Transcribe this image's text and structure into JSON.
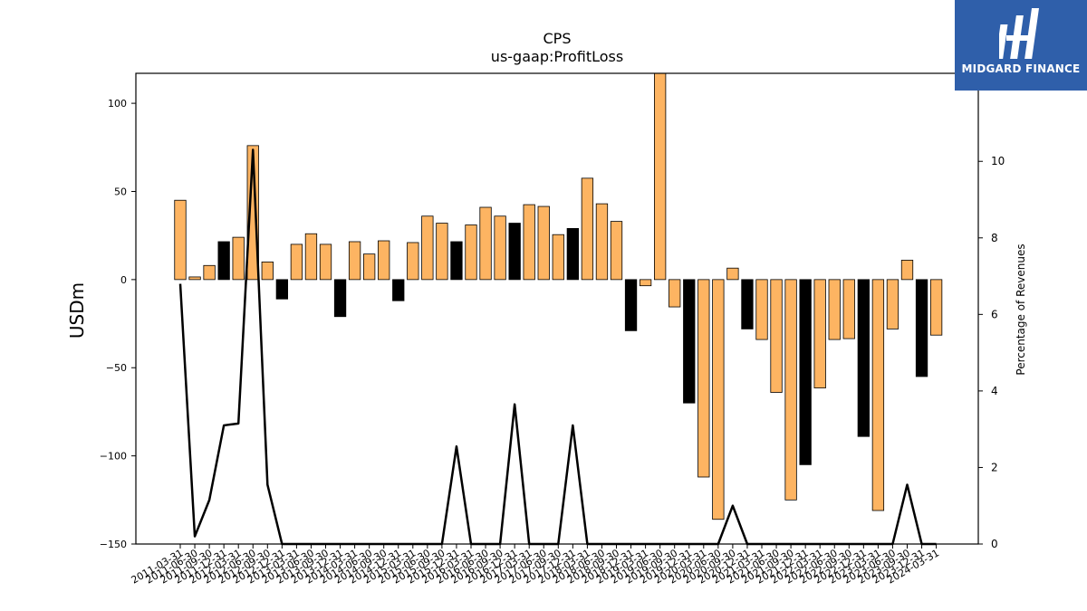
{
  "brand": {
    "name": "MIDGARD FINANCE",
    "logo_icon": "midgard-m-logo-icon",
    "color": "#2f5faa"
  },
  "chart_data": {
    "type": "bar",
    "title": "CPS",
    "subtitle": "us-gaap:ProfitLoss",
    "ylabel": "USDm",
    "y2label": "Percentage of Revenues",
    "ylim": [
      -150,
      117
    ],
    "y2lim": [
      0,
      12.3
    ],
    "yticks": [
      -150,
      -100,
      -50,
      0,
      50,
      100
    ],
    "y2ticks": [
      0,
      2,
      4,
      6,
      8,
      10
    ],
    "grid": false,
    "colors": {
      "quarter": "#fdb462",
      "annual": "#000000",
      "line": "#000000"
    },
    "categories": [
      "2011-03-31",
      "2011-06-30",
      "2011-09-30",
      "2011-12-31",
      "2012-03-31",
      "2012-06-30",
      "2012-09-30",
      "2012-12-31",
      "2013-03-31",
      "2013-06-30",
      "2013-09-30",
      "2013-12-31",
      "2014-03-31",
      "2014-06-30",
      "2014-09-30",
      "2014-12-31",
      "2015-03-31",
      "2015-06-30",
      "2015-09-30",
      "2015-12-31",
      "2016-03-31",
      "2016-06-30",
      "2016-09-30",
      "2016-12-31",
      "2017-03-31",
      "2017-06-30",
      "2017-09-30",
      "2017-12-31",
      "2018-03-31",
      "2018-06-30",
      "2018-09-30",
      "2018-12-31",
      "2019-03-31",
      "2019-06-30",
      "2019-09-30",
      "2019-12-31",
      "2020-03-31",
      "2020-06-30",
      "2020-09-30",
      "2020-12-31",
      "2021-03-31",
      "2021-06-30",
      "2021-09-30",
      "2021-12-31",
      "2022-03-31",
      "2022-06-30",
      "2022-09-30",
      "2022-12-31",
      "2023-03-31",
      "2023-06-30",
      "2023-09-30",
      "2023-12-31",
      "2024-03-31"
    ],
    "series": [
      {
        "type": "bar",
        "values": [
          45,
          1.5,
          8,
          21.5,
          24,
          76,
          10,
          -11,
          20,
          26,
          20,
          -21,
          21.5,
          14.5,
          22,
          -12,
          21,
          36,
          32,
          21.5,
          31,
          41,
          36,
          32,
          42.5,
          41.5,
          25.5,
          29,
          57.5,
          43,
          33,
          -29,
          -3.5,
          119,
          -15.5,
          -70,
          -112,
          -136,
          6.5,
          -28,
          -34,
          -64,
          -125,
          -105,
          -61.5,
          -34,
          -33.5,
          -89,
          -131,
          -28,
          11,
          -55,
          -31.5
        ],
        "annual": [
          false,
          false,
          false,
          true,
          false,
          false,
          false,
          true,
          false,
          false,
          false,
          true,
          false,
          false,
          false,
          true,
          false,
          false,
          false,
          true,
          false,
          false,
          false,
          true,
          false,
          false,
          false,
          true,
          false,
          false,
          false,
          true,
          false,
          false,
          false,
          true,
          false,
          false,
          false,
          true,
          false,
          false,
          false,
          true,
          false,
          false,
          false,
          true,
          false,
          false,
          false,
          true,
          false
        ]
      },
      {
        "type": "line",
        "axis": "right",
        "values": [
          6.8,
          0.2,
          1.15,
          3.1,
          3.15,
          10.3,
          1.55,
          0,
          0,
          0,
          0,
          0,
          0,
          0,
          0,
          0,
          0,
          0,
          0,
          2.55,
          0,
          0,
          0,
          3.65,
          0,
          0,
          0,
          3.1,
          0,
          0,
          0,
          0,
          0,
          0,
          0,
          0,
          0,
          0,
          1.0,
          0,
          0,
          0,
          0,
          0,
          0,
          0,
          0,
          0,
          0,
          0,
          1.55,
          0,
          0
        ]
      }
    ]
  }
}
